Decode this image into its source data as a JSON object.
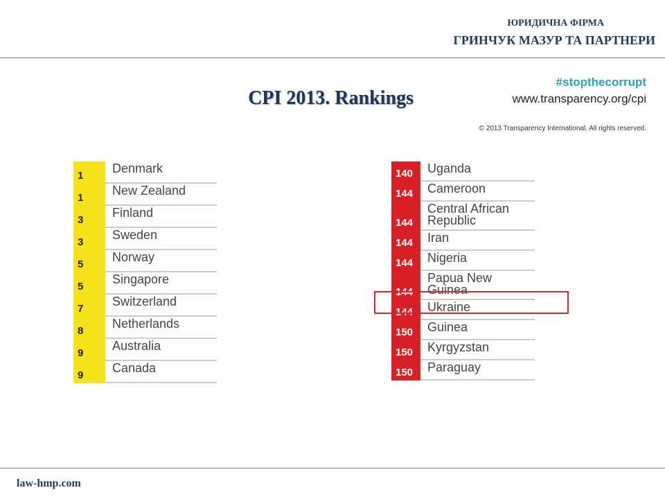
{
  "header": {
    "firm_type": "ЮРИДИЧНА ФІРМА",
    "firm_name": "ГРИНЧУК МАЗУР ТА ПАРТНЕРИ"
  },
  "title": "CPI 2013. Rankings",
  "hashtag": "#stopthecorrupt",
  "url": "www.transparency.org/cpi",
  "copyright": "© 2013 Transparency International. All rights reserved.",
  "left_table": {
    "rows": [
      [
        1,
        "Denmark"
      ],
      [
        1,
        "New Zealand"
      ],
      [
        3,
        "Finland"
      ],
      [
        3,
        "Sweden"
      ],
      [
        5,
        "Norway"
      ],
      [
        5,
        "Singapore"
      ],
      [
        7,
        "Switzerland"
      ],
      [
        8,
        "Netherlands"
      ],
      [
        9,
        "Australia"
      ],
      [
        9,
        "Canada"
      ]
    ]
  },
  "right_table": {
    "rows": [
      [
        140,
        "Uganda"
      ],
      [
        144,
        "Cameroon"
      ],
      [
        144,
        "Central African Republic"
      ],
      [
        144,
        "Iran"
      ],
      [
        144,
        "Nigeria"
      ],
      [
        144,
        "Papua New Guinea"
      ],
      [
        144,
        "Ukraine"
      ],
      [
        150,
        "Guinea"
      ],
      [
        150,
        "Kyrgyzstan"
      ],
      [
        150,
        "Paraguay"
      ]
    ]
  },
  "footer": "law-hmp.com"
}
